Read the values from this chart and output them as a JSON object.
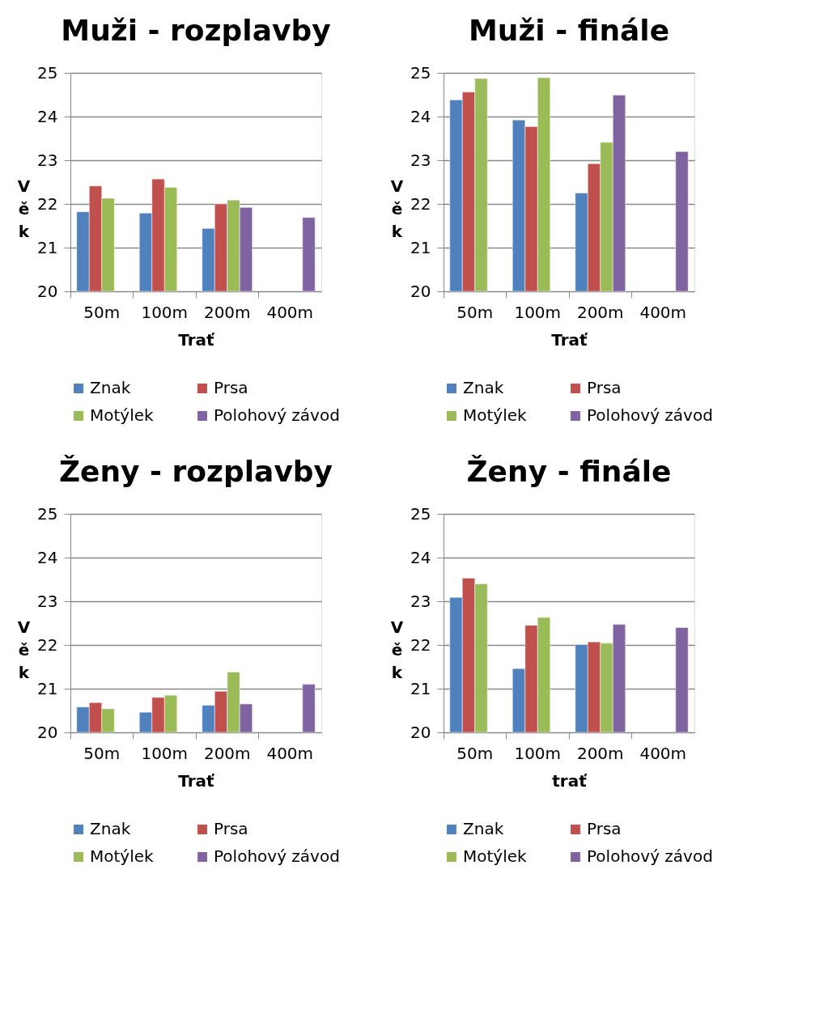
{
  "chart_data": [
    {
      "type": "bar",
      "title": "Muži - rozplavby",
      "xlabel": "Trať",
      "ylabel": "Věk",
      "categories": [
        "50m",
        "100m",
        "200m",
        "400m"
      ],
      "ylim": [
        20,
        25
      ],
      "yticks": [
        20,
        21,
        22,
        23,
        24,
        25
      ],
      "grid": "y",
      "legend": "bottom",
      "series": [
        {
          "name": "Znak",
          "color": "#4f81bd",
          "values": [
            21.82,
            21.79,
            21.44,
            null
          ]
        },
        {
          "name": "Prsa",
          "color": "#c0504d",
          "values": [
            22.41,
            22.57,
            22.0,
            null
          ]
        },
        {
          "name": "Motýlek",
          "color": "#9bbb59",
          "values": [
            22.13,
            22.38,
            22.09,
            null
          ]
        },
        {
          "name": "Polohový závod",
          "color": "#8064a2",
          "values": [
            null,
            null,
            21.92,
            21.69
          ]
        }
      ]
    },
    {
      "type": "bar",
      "title": "Muži - finále",
      "xlabel": "Trať",
      "ylabel": "Věk",
      "categories": [
        "50m",
        "100m",
        "200m",
        "400m"
      ],
      "ylim": [
        20,
        25
      ],
      "yticks": [
        20,
        21,
        22,
        23,
        24,
        25
      ],
      "grid": "y",
      "legend": "bottom",
      "series": [
        {
          "name": "Znak",
          "color": "#4f81bd",
          "values": [
            24.38,
            23.92,
            22.25,
            null
          ]
        },
        {
          "name": "Prsa",
          "color": "#c0504d",
          "values": [
            24.56,
            23.77,
            22.92,
            null
          ]
        },
        {
          "name": "Motýlek",
          "color": "#9bbb59",
          "values": [
            24.87,
            24.89,
            23.41,
            null
          ]
        },
        {
          "name": "Polohový závod",
          "color": "#8064a2",
          "values": [
            null,
            null,
            24.49,
            23.2
          ]
        }
      ]
    },
    {
      "type": "bar",
      "title": "Ženy - rozplavby",
      "xlabel": "Trať",
      "ylabel": "Věk",
      "categories": [
        "50m",
        "100m",
        "200m",
        "400m"
      ],
      "ylim": [
        20,
        25
      ],
      "yticks": [
        20,
        21,
        22,
        23,
        24,
        25
      ],
      "grid": "y",
      "legend": "bottom",
      "series": [
        {
          "name": "Znak",
          "color": "#4f81bd",
          "values": [
            20.58,
            20.46,
            20.62,
            null
          ]
        },
        {
          "name": "Prsa",
          "color": "#c0504d",
          "values": [
            20.68,
            20.8,
            20.94,
            null
          ]
        },
        {
          "name": "Motýlek",
          "color": "#9bbb59",
          "values": [
            20.54,
            20.85,
            21.38,
            null
          ]
        },
        {
          "name": "Polohový závod",
          "color": "#8064a2",
          "values": [
            null,
            null,
            20.65,
            21.1
          ]
        }
      ]
    },
    {
      "type": "bar",
      "title": "Ženy - finále",
      "xlabel": "trať",
      "ylabel": "Věk",
      "categories": [
        "50m",
        "100m",
        "200m",
        "400m"
      ],
      "ylim": [
        20,
        25
      ],
      "yticks": [
        20,
        21,
        22,
        23,
        24,
        25
      ],
      "grid": "y",
      "legend": "bottom",
      "series": [
        {
          "name": "Znak",
          "color": "#4f81bd",
          "values": [
            23.09,
            21.46,
            22.01,
            null
          ]
        },
        {
          "name": "Prsa",
          "color": "#c0504d",
          "values": [
            23.53,
            22.45,
            22.07,
            null
          ]
        },
        {
          "name": "Motýlek",
          "color": "#9bbb59",
          "values": [
            23.4,
            22.63,
            22.04,
            null
          ]
        },
        {
          "name": "Polohový závod",
          "color": "#8064a2",
          "values": [
            null,
            null,
            22.47,
            22.4
          ]
        }
      ]
    }
  ]
}
